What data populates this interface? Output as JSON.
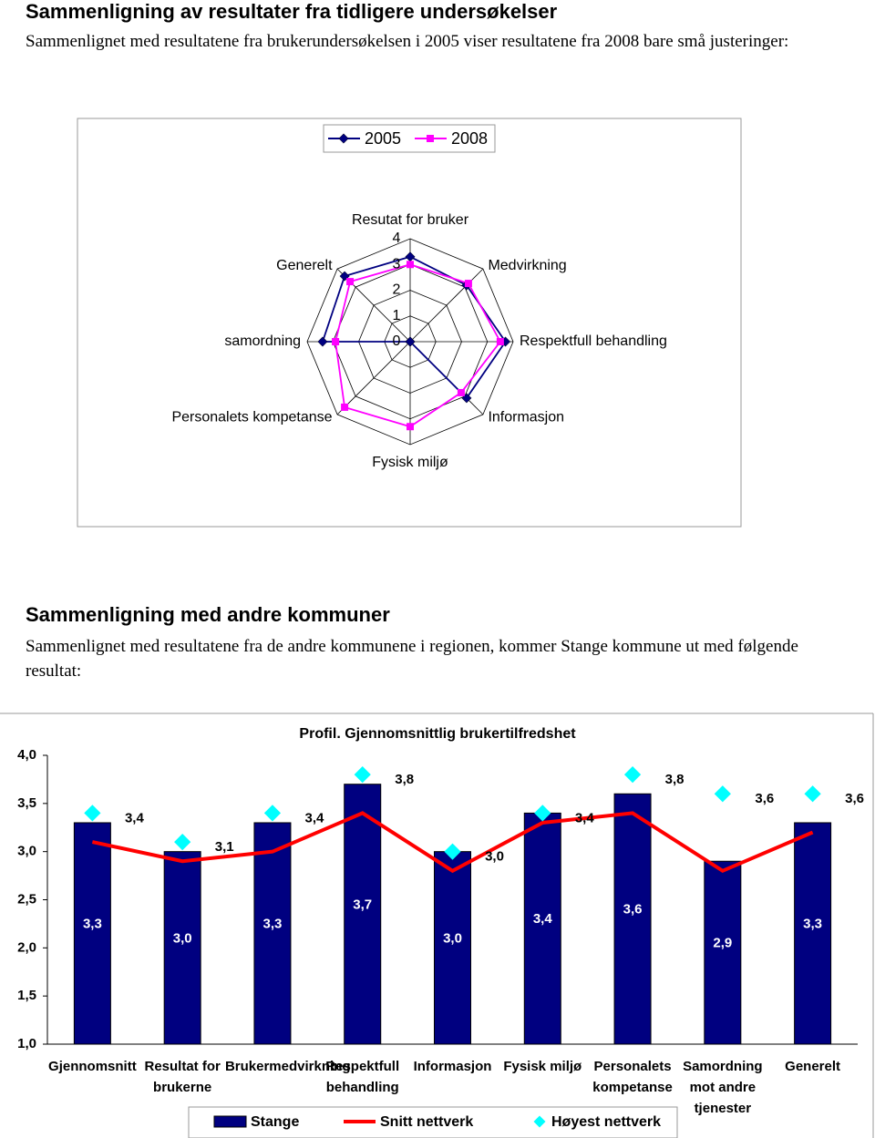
{
  "sections": [
    {
      "title": "Sammenligning av resultater fra tidligere undersøkelser",
      "text": "Sammenlignet med resultatene fra brukerundersøkelsen i 2005 viser resultatene fra 2008 bare små justeringer:"
    },
    {
      "title": "Sammenligning med andre kommuner",
      "text": "Sammenlignet med resultatene fra de andre kommunene i regionen, kommer Stange kommune ut med følgende resultat:"
    }
  ],
  "chart_data": [
    {
      "type": "radar",
      "categories": [
        "Resutat for bruker",
        "Medvirkning",
        "Respektfull behandling",
        "Informasjon",
        "Fysisk miljø",
        "Personalets kompetanse",
        "samordning",
        "Generelt"
      ],
      "rlim": [
        0,
        4
      ],
      "rticks": [
        0,
        1,
        2,
        3,
        4
      ],
      "series": [
        {
          "name": "2005",
          "color": "#000080",
          "marker": "diamond",
          "values": [
            3.3,
            3.1,
            3.7,
            3.1,
            0,
            0,
            3.4,
            3.6
          ]
        },
        {
          "name": "2008",
          "color": "#ff00ff",
          "marker": "square",
          "values": [
            3.0,
            3.2,
            3.5,
            2.8,
            3.3,
            3.6,
            2.9,
            3.3
          ]
        }
      ]
    },
    {
      "type": "bar-line",
      "title": "Profil. Gjennomsnittlig brukertilfredshet",
      "categories": [
        "Gjennomsnitt",
        "Resultat for brukerne",
        "Brukermedvirkning",
        "Respektfull behandling",
        "Informasjon",
        "Fysisk miljø",
        "Personalets kompetanse",
        "Samordning mot andre tjenester",
        "Generelt"
      ],
      "ylim": [
        1,
        4
      ],
      "yticks": [
        {
          "value": 1,
          "label": "1,0"
        },
        {
          "value": 1.5,
          "label": "1,5"
        },
        {
          "value": 2,
          "label": "2,0"
        },
        {
          "value": 2.5,
          "label": "2,5"
        },
        {
          "value": 3,
          "label": "3,0"
        },
        {
          "value": 3.5,
          "label": "3,5"
        },
        {
          "value": 4,
          "label": "4,0"
        }
      ],
      "series": [
        {
          "name": "Stange",
          "type": "bar",
          "color": "#000080",
          "values": [
            3.3,
            3.0,
            3.3,
            3.7,
            3.0,
            3.4,
            3.6,
            2.9,
            3.3
          ],
          "value_labels": [
            "3,3",
            "3,0",
            "3,3",
            "3,7",
            "3,0",
            "3,4",
            "3,6",
            "2,9",
            "3,3"
          ]
        },
        {
          "name": "Snitt nettverk",
          "type": "line",
          "color": "#ff0000",
          "values": [
            3.1,
            2.9,
            3.0,
            3.4,
            2.8,
            3.3,
            3.4,
            2.8,
            3.2
          ]
        },
        {
          "name": "Høyest nettverk",
          "type": "marker",
          "color": "#00ffff",
          "values": [
            3.4,
            3.1,
            3.4,
            3.8,
            3.0,
            3.4,
            3.8,
            3.6,
            3.6
          ],
          "value_labels": [
            "3,4",
            "3,1",
            "3,4",
            "3,8",
            "3,0",
            "3,4",
            "3,8",
            "3,6",
            "3,6"
          ]
        }
      ]
    }
  ]
}
